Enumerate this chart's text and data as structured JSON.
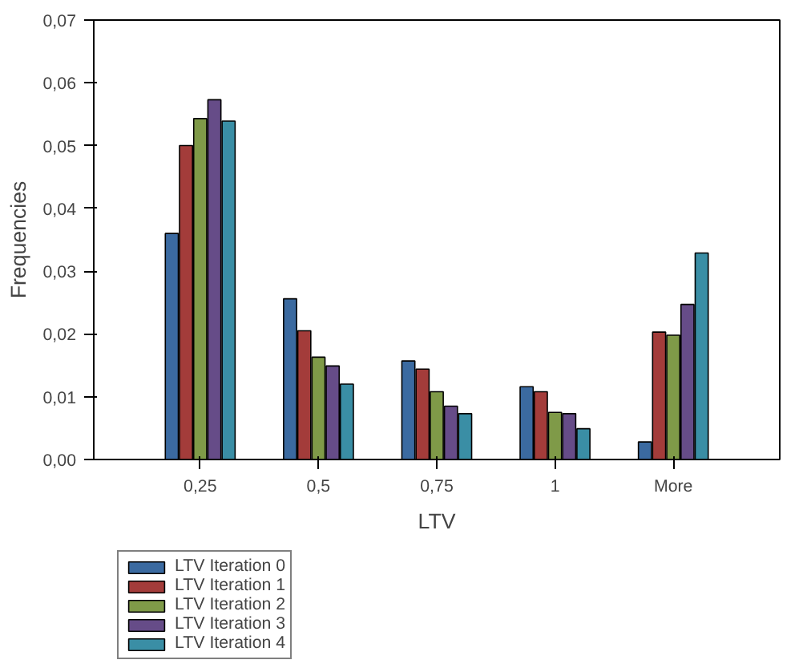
{
  "chart_data": {
    "type": "bar",
    "xlabel": "LTV",
    "ylabel": "Frequencies",
    "categories": [
      "0,25",
      "0,5",
      "0,75",
      "1",
      "More"
    ],
    "series": [
      {
        "name": "LTV Iteration 0",
        "color": "#3b6aa0",
        "values": [
          0.036,
          0.0256,
          0.0157,
          0.0116,
          0.0028
        ]
      },
      {
        "name": "LTV Iteration 1",
        "color": "#a33c3a",
        "values": [
          0.05,
          0.0205,
          0.0144,
          0.0108,
          0.0203
        ]
      },
      {
        "name": "LTV Iteration 2",
        "color": "#7f9a48",
        "values": [
          0.0543,
          0.0163,
          0.0108,
          0.0075,
          0.0198
        ]
      },
      {
        "name": "LTV Iteration 3",
        "color": "#664c88",
        "values": [
          0.0573,
          0.0149,
          0.0085,
          0.0073,
          0.0247
        ]
      },
      {
        "name": "LTV Iteration 4",
        "color": "#3a8ea5",
        "values": [
          0.0539,
          0.012,
          0.0073,
          0.0049,
          0.0329
        ]
      }
    ],
    "ylim": [
      0,
      0.07
    ],
    "yticks": [
      {
        "value": 0,
        "label": "0,00"
      },
      {
        "value": 0.01,
        "label": "0,01"
      },
      {
        "value": 0.02,
        "label": "0,02"
      },
      {
        "value": 0.03,
        "label": "0,03"
      },
      {
        "value": 0.04,
        "label": "0,04"
      },
      {
        "value": 0.05,
        "label": "0,05"
      },
      {
        "value": 0.06,
        "label": "0,06"
      },
      {
        "value": 0.07,
        "label": "0,07"
      }
    ],
    "grid": false,
    "legend": "bottom left"
  }
}
